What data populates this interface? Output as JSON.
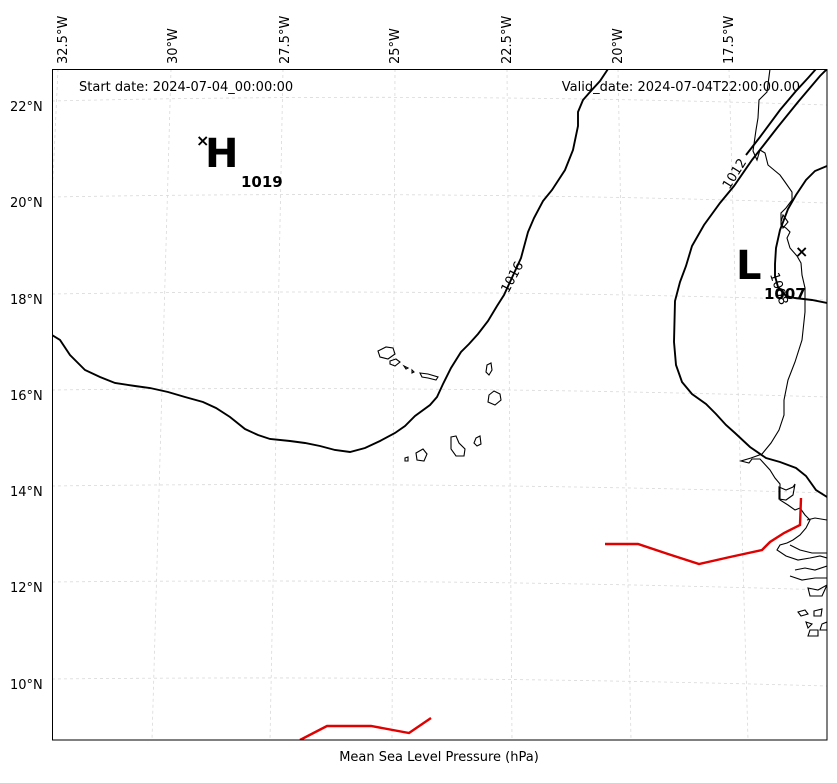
{
  "header": {
    "start_date": "Start date: 2024-07-04_00:00:00",
    "valid_date": "Valid_date: 2024-07-04T22:00:00.00"
  },
  "footer": {
    "title": "Mean Sea Level Pressure (hPa)"
  },
  "axes": {
    "longitude_labels": [
      "32.5°W",
      "30°W",
      "27.5°W",
      "25°W",
      "22.5°W",
      "20°W",
      "17.5°W"
    ],
    "latitude_labels": [
      "22°N",
      "20°N",
      "18°N",
      "16°N",
      "14°N",
      "12°N",
      "10°N"
    ]
  },
  "pressure_centers": {
    "high": {
      "symbol": "H",
      "value": "1019",
      "marker": "×"
    },
    "low": {
      "symbol": "L",
      "value": "1007",
      "marker": "×"
    }
  },
  "isobars": {
    "labels": [
      "1016",
      "1012",
      "1008"
    ]
  },
  "colors": {
    "isobar": "#000000",
    "coastline": "#000000",
    "front": "#e00000",
    "gridline": "#d9d9d9"
  }
}
